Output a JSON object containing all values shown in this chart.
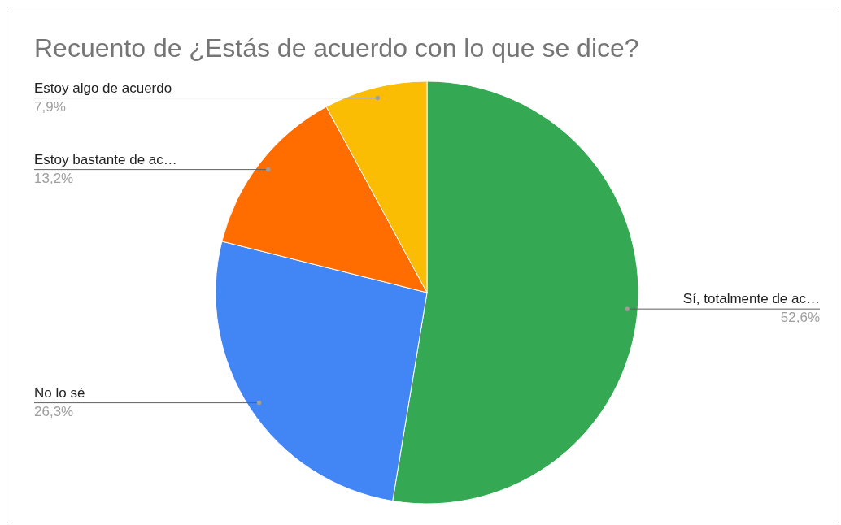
{
  "chart_data": {
    "type": "pie",
    "title": "Recuento de ¿Estás de acuerdo con lo que se dice?",
    "categories": [
      "Sí, totalmente de ac…",
      "No lo sé",
      "Estoy bastante de ac…",
      "Estoy algo de acuerdo"
    ],
    "values": [
      52.6,
      26.3,
      13.2,
      7.9
    ],
    "colors": [
      "#34a853",
      "#4285f4",
      "#ff6d01",
      "#fbbc04"
    ],
    "value_labels": [
      "52,6%",
      "26,3%",
      "13,2%",
      "7,9%"
    ]
  }
}
